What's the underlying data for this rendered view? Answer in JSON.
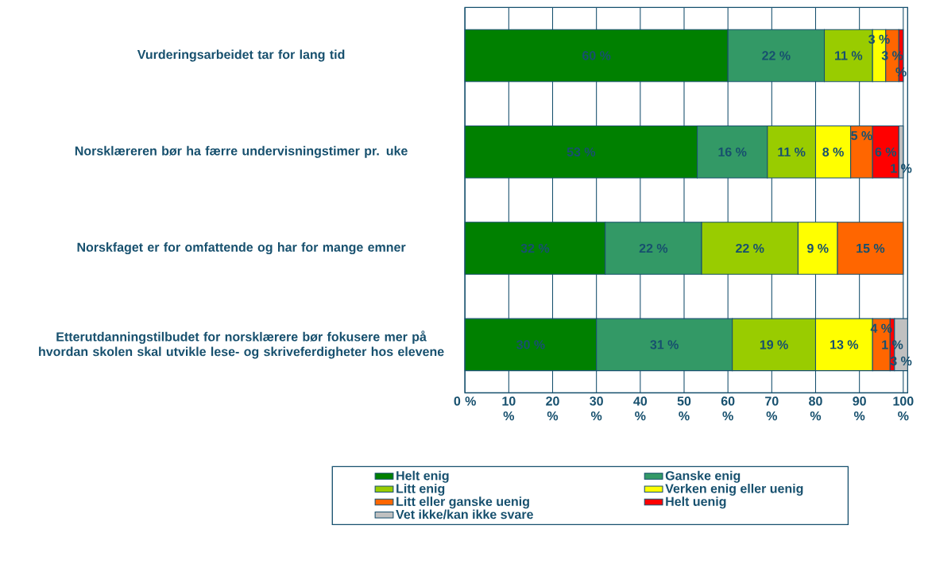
{
  "chart_data": {
    "type": "bar",
    "orientation": "horizontal",
    "stacked": true,
    "categories": [
      "Vurderingsarbeidet tar for lang tid",
      "Norsklæreren bør ha færre undervisningstimer pr. uke",
      "Norskfaget er for omfattende og har for mange emner",
      "Etterutdanningstilbudet for norsklærere bør fokusere mer på hvordan skolen skal utvikle lese- og skriveferdigheter hos elevene"
    ],
    "series": [
      {
        "name": "Helt enig",
        "color": "#008000",
        "values": [
          60,
          53,
          32,
          30
        ],
        "value_labels": [
          "60 %",
          "53 %",
          "32 %",
          "30 %"
        ]
      },
      {
        "name": "Ganske enig",
        "color": "#339966",
        "values": [
          22,
          16,
          22,
          31
        ],
        "value_labels": [
          "22 %",
          "16 %",
          "22 %",
          "31 %"
        ]
      },
      {
        "name": "Litt enig",
        "color": "#99cc00",
        "values": [
          11,
          11,
          22,
          19
        ],
        "value_labels": [
          "11 %",
          "11 %",
          "22 %",
          "19 %"
        ]
      },
      {
        "name": "Verken enig eller uenig",
        "color": "#ffff00",
        "values": [
          3,
          8,
          9,
          13
        ],
        "value_labels": [
          "3 %",
          "8 %",
          "9 %",
          "13 %"
        ]
      },
      {
        "name": "Litt eller ganske uenig",
        "color": "#ff6600",
        "values": [
          3,
          5,
          15,
          4
        ],
        "value_labels": [
          "3 %",
          "5 %",
          "15 %",
          "4 %"
        ]
      },
      {
        "name": "Helt uenig",
        "color": "#ff0000",
        "values": [
          1,
          6,
          null,
          1
        ],
        "value_labels": [
          "%",
          "6 %",
          null,
          "1 %"
        ]
      },
      {
        "name": "Vet ikke/kan ikke svare",
        "color": "#c0c0c0",
        "values": [
          null,
          1,
          null,
          3
        ],
        "value_labels": [
          null,
          "1 %",
          null,
          "3 %"
        ]
      }
    ],
    "xlim": [
      0,
      101
    ],
    "xticks": [
      {
        "value": 0,
        "label": "0 %"
      },
      {
        "value": 10,
        "label": "10 %"
      },
      {
        "value": 20,
        "label": "20 %"
      },
      {
        "value": 30,
        "label": "30 %"
      },
      {
        "value": 40,
        "label": "40 %"
      },
      {
        "value": 50,
        "label": "50 %"
      },
      {
        "value": 60,
        "label": "60 %"
      },
      {
        "value": 70,
        "label": "70 %"
      },
      {
        "value": 80,
        "label": "80 %"
      },
      {
        "value": 90,
        "label": "90 %"
      },
      {
        "value": 100,
        "label": "100 %"
      }
    ],
    "grid": "x",
    "legend": "bottom"
  }
}
